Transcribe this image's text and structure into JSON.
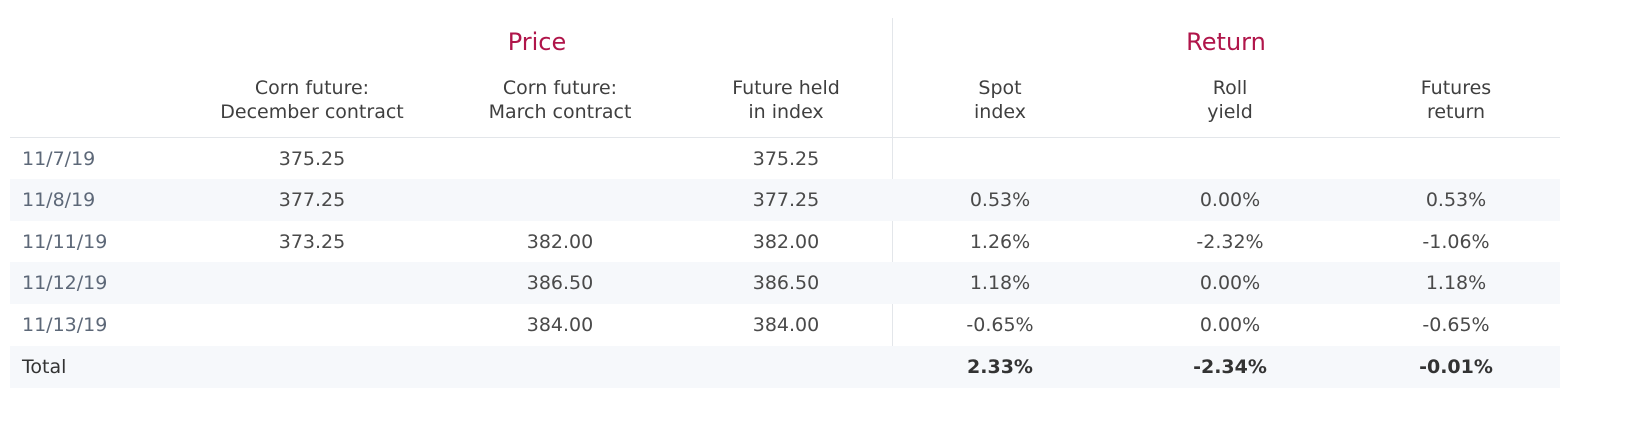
{
  "groups": {
    "price": "Price",
    "return": "Return"
  },
  "columns": [
    "Corn future:\nDecember contract",
    "Corn future:\nMarch contract",
    "Future held\nin index",
    "Spot\nindex",
    "Roll\nyield",
    "Futures\nreturn"
  ],
  "rows": [
    {
      "date": "11/7/19",
      "dec": "375.25",
      "mar": "",
      "held": "375.25",
      "spot": "",
      "roll": "",
      "fut": ""
    },
    {
      "date": "11/8/19",
      "dec": "377.25",
      "mar": "",
      "held": "377.25",
      "spot": "0.53%",
      "roll": "0.00%",
      "fut": "0.53%"
    },
    {
      "date": "11/11/19",
      "dec": "373.25",
      "mar": "382.00",
      "held": "382.00",
      "spot": "1.26%",
      "roll": "-2.32%",
      "fut": "-1.06%"
    },
    {
      "date": "11/12/19",
      "dec": "",
      "mar": "386.50",
      "held": "386.50",
      "spot": "1.18%",
      "roll": "0.00%",
      "fut": "1.18%"
    },
    {
      "date": "11/13/19",
      "dec": "",
      "mar": "384.00",
      "held": "384.00",
      "spot": "-0.65%",
      "roll": "0.00%",
      "fut": "-0.65%"
    }
  ],
  "total": {
    "label": "Total",
    "spot": "2.33%",
    "roll": "-2.34%",
    "fut": "-0.01%"
  },
  "colors": {
    "accent": "#b0154a",
    "row_alt": "#f6f8fb",
    "rule": "#e3e6ea"
  }
}
